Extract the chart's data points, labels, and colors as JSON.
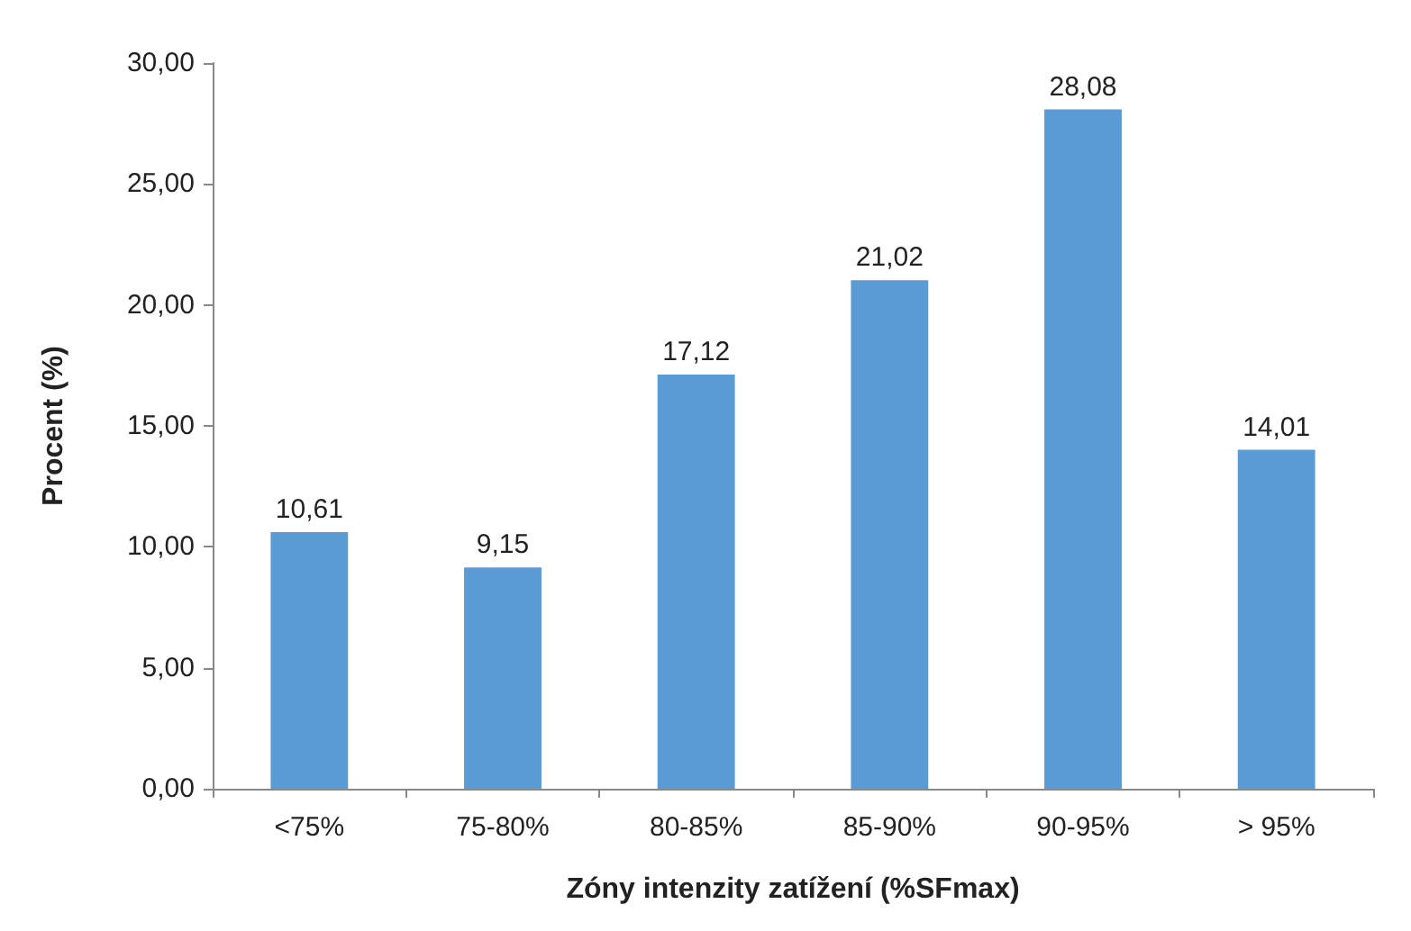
{
  "chart_data": {
    "type": "bar",
    "xlabel": "Zóny intenzity zatížení (%SFmax)",
    "ylabel": "Procent (%)",
    "categories": [
      "<75%",
      "75-80%",
      "80-85%",
      "85-90%",
      "90-95%",
      "> 95%"
    ],
    "values": [
      10.61,
      9.15,
      17.12,
      21.02,
      28.08,
      14.01
    ],
    "value_labels": [
      "10,61",
      "9,15",
      "17,12",
      "21,02",
      "28,08",
      "14,01"
    ],
    "color": "#5b9bd5",
    "ylim": [
      0,
      30
    ],
    "yticks": [
      {
        "value": 0,
        "label": "0,00"
      },
      {
        "value": 5,
        "label": "5,00"
      },
      {
        "value": 10,
        "label": "10,00"
      },
      {
        "value": 15,
        "label": "15,00"
      },
      {
        "value": 20,
        "label": "20,00"
      },
      {
        "value": 25,
        "label": "25,00"
      },
      {
        "value": 30,
        "label": "30,00"
      }
    ],
    "grid": false
  }
}
